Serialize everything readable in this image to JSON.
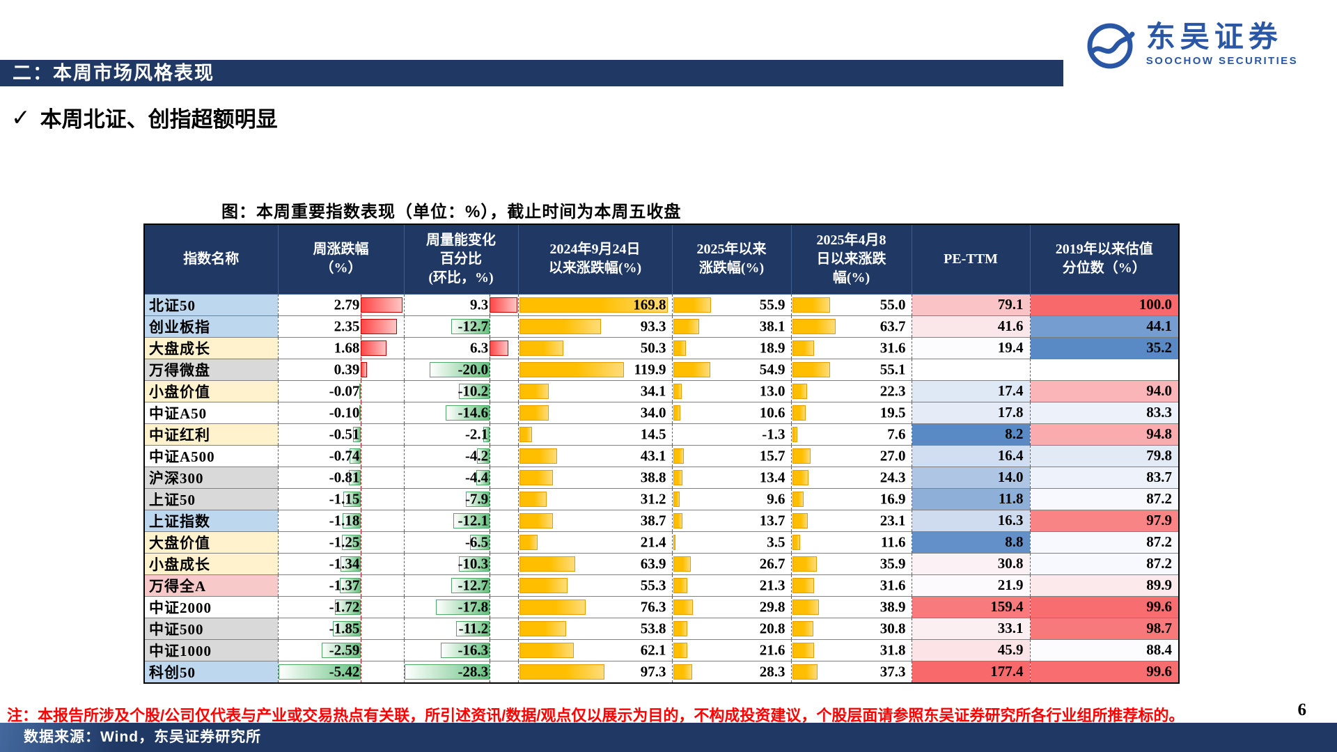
{
  "page": {
    "section_title": "二：本周市场风格表现",
    "bullet_check": "✓",
    "bullet": "本周北证、创指超额明显",
    "figure_title": "图：本周重要指数表现（单位：%），截止时间为本周五收盘",
    "footnote": "注：本报告所涉及个股/公司仅代表与产业或交易热点有关联，所引述资讯/数据/观点仅以展示为目的，不构成投资建议，个股层面请参照东吴证券研究所各行业组所推荐标的。",
    "page_number": "6",
    "source": "数据来源：Wind，东吴证券研究所"
  },
  "logo": {
    "name_cn": "东吴证券",
    "name_en": "SOOCHOW SECURITIES",
    "color": "#2A57A5"
  },
  "colors": {
    "band": "#1F3864",
    "header_bg": "#1F3864",
    "footnote_red": "#FF0000",
    "name_bg": {
      "blue": "#BDD7EE",
      "yellow": "#FFF2CC",
      "gray": "#D9D9D9",
      "pink": "#F8C9C9",
      "white": "#FFFFFF"
    },
    "bars": {
      "positive": "#FF4545",
      "negative": "#63BE7B",
      "orange": "#FFC000",
      "axis": "#C00000"
    },
    "heat": {
      "low": "#5A8AC6",
      "mid": "#FCFCFF",
      "high": "#F8696B"
    }
  },
  "table": {
    "columns": [
      {
        "key": "name",
        "label": "指数名称"
      },
      {
        "key": "weekly",
        "label": "周涨跌幅\n（%）"
      },
      {
        "key": "volume",
        "label": "周量能变化\n百分比\n(环比，%)"
      },
      {
        "key": "since0924",
        "label": "2024年9月24日\n以来涨跌幅(%)"
      },
      {
        "key": "ytd",
        "label": "2025年以来\n涨跌幅(%)"
      },
      {
        "key": "since0408",
        "label": "2025年4月8\n日以来涨跌\n幅(%)"
      },
      {
        "key": "pe",
        "label": "PE-TTM"
      },
      {
        "key": "pct",
        "label": "2019年以来估值\n分位数（%）"
      }
    ],
    "rows": [
      {
        "name": "北证50",
        "bg": "blue",
        "weekly": 2.79,
        "volume": 9.3,
        "since0924": 169.8,
        "ytd": 55.9,
        "since0408": 55.0,
        "pe": 79.1,
        "pct": 100.0
      },
      {
        "name": "创业板指",
        "bg": "blue",
        "weekly": 2.35,
        "volume": -12.7,
        "since0924": 93.3,
        "ytd": 38.1,
        "since0408": 63.7,
        "pe": 41.6,
        "pct": 44.1
      },
      {
        "name": "大盘成长",
        "bg": "yellow",
        "weekly": 1.68,
        "volume": 6.3,
        "since0924": 50.3,
        "ytd": 18.9,
        "since0408": 31.6,
        "pe": 19.4,
        "pct": 35.2
      },
      {
        "name": "万得微盘",
        "bg": "gray",
        "weekly": 0.39,
        "volume": -20.0,
        "since0924": 119.9,
        "ytd": 54.9,
        "since0408": 55.1,
        "pe": null,
        "pct": null
      },
      {
        "name": "小盘价值",
        "bg": "yellow",
        "weekly": -0.07,
        "volume": -10.2,
        "since0924": 34.1,
        "ytd": 13.0,
        "since0408": 22.3,
        "pe": 17.4,
        "pct": 94.0
      },
      {
        "name": "中证A50",
        "bg": "white",
        "weekly": -0.1,
        "volume": -14.6,
        "since0924": 34.0,
        "ytd": 10.6,
        "since0408": 19.5,
        "pe": 17.8,
        "pct": 83.3
      },
      {
        "name": "中证红利",
        "bg": "yellow",
        "weekly": -0.51,
        "volume": -2.1,
        "since0924": 14.5,
        "ytd": -1.3,
        "since0408": 7.6,
        "pe": 8.2,
        "pct": 94.8
      },
      {
        "name": "中证A500",
        "bg": "white",
        "weekly": -0.74,
        "volume": -4.2,
        "since0924": 43.1,
        "ytd": 15.7,
        "since0408": 27.0,
        "pe": 16.4,
        "pct": 79.8
      },
      {
        "name": "沪深300",
        "bg": "gray",
        "weekly": -0.81,
        "volume": -4.4,
        "since0924": 38.8,
        "ytd": 13.4,
        "since0408": 24.3,
        "pe": 14.0,
        "pct": 83.7
      },
      {
        "name": "上证50",
        "bg": "gray",
        "weekly": -1.15,
        "volume": -7.9,
        "since0924": 31.2,
        "ytd": 9.6,
        "since0408": 16.9,
        "pe": 11.8,
        "pct": 87.2
      },
      {
        "name": "上证指数",
        "bg": "blue",
        "weekly": -1.18,
        "volume": -12.1,
        "since0924": 38.7,
        "ytd": 13.7,
        "since0408": 23.1,
        "pe": 16.3,
        "pct": 97.9
      },
      {
        "name": "大盘价值",
        "bg": "yellow",
        "weekly": -1.25,
        "volume": -6.5,
        "since0924": 21.4,
        "ytd": 3.5,
        "since0408": 11.6,
        "pe": 8.8,
        "pct": 87.2
      },
      {
        "name": "小盘成长",
        "bg": "yellow",
        "weekly": -1.34,
        "volume": -10.3,
        "since0924": 63.9,
        "ytd": 26.7,
        "since0408": 35.9,
        "pe": 30.8,
        "pct": 87.2
      },
      {
        "name": "万得全A",
        "bg": "pink",
        "weekly": -1.37,
        "volume": -12.7,
        "since0924": 55.3,
        "ytd": 21.3,
        "since0408": 31.6,
        "pe": 21.9,
        "pct": 89.9
      },
      {
        "name": "中证2000",
        "bg": "white",
        "weekly": -1.72,
        "volume": -17.8,
        "since0924": 76.3,
        "ytd": 29.8,
        "since0408": 38.9,
        "pe": 159.4,
        "pct": 99.6
      },
      {
        "name": "中证500",
        "bg": "gray",
        "weekly": -1.85,
        "volume": -11.2,
        "since0924": 53.8,
        "ytd": 20.8,
        "since0408": 30.8,
        "pe": 33.1,
        "pct": 98.7
      },
      {
        "name": "中证1000",
        "bg": "gray",
        "weekly": -2.59,
        "volume": -16.3,
        "since0924": 62.1,
        "ytd": 21.6,
        "since0408": 31.8,
        "pe": 45.9,
        "pct": 88.4
      },
      {
        "name": "科创50",
        "bg": "blue",
        "weekly": -5.42,
        "volume": -28.3,
        "since0924": 97.3,
        "ytd": 28.3,
        "since0408": 37.3,
        "pe": 177.4,
        "pct": 99.6
      }
    ]
  }
}
